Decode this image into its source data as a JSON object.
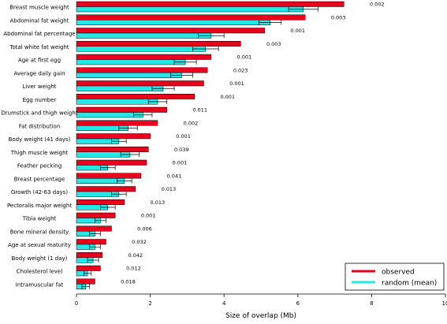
{
  "chart_data": {
    "type": "bar",
    "orientation": "horizontal",
    "xlabel": "Size of overlap (Mb)",
    "xlim": [
      0,
      10
    ],
    "xticks": [
      0,
      2,
      4,
      6,
      8,
      10
    ],
    "grid": false,
    "legend_position": "bottom-right",
    "categories": [
      "Breast muscle weight",
      "Abdominal fat weight",
      "Abdominal fat percentage",
      "Total white fat weight",
      "Age at first egg",
      "Average daily gain",
      "Liver weight",
      "Egg number",
      "Drumstick and thigh weight",
      "Fat distribution",
      "Body weight (41 days)",
      "Thigh muscle weight",
      "Feather pecking",
      "Breast percentage",
      "Growth (42-63 days)",
      "Pectoralis major weight",
      "Tibia weight",
      "Bone mineral density",
      "Age at sexual maturity",
      "Body weight (1 day)",
      "Cholesterol level",
      "Intramuscular fat"
    ],
    "series": [
      {
        "name": "observed",
        "color": "#e8001c",
        "values": [
          7.25,
          6.2,
          5.1,
          4.45,
          3.65,
          3.55,
          3.45,
          3.2,
          2.45,
          2.2,
          2.0,
          1.95,
          1.9,
          1.75,
          1.6,
          1.3,
          1.05,
          0.95,
          0.8,
          0.7,
          0.65,
          0.5
        ]
      },
      {
        "name": "random (mean)",
        "color": "#22e8e8",
        "values": [
          6.15,
          5.25,
          3.65,
          3.5,
          2.95,
          2.85,
          2.35,
          2.2,
          1.8,
          1.4,
          1.15,
          1.45,
          0.85,
          1.3,
          1.15,
          0.85,
          0.65,
          0.5,
          0.5,
          0.45,
          0.3,
          0.25
        ],
        "errors": [
          0.4,
          0.3,
          0.35,
          0.35,
          0.3,
          0.3,
          0.3,
          0.25,
          0.25,
          0.25,
          0.2,
          0.25,
          0.2,
          0.2,
          0.2,
          0.2,
          0.15,
          0.15,
          0.15,
          0.15,
          0.1,
          0.1
        ]
      }
    ],
    "pvalues": [
      "0.002",
      "0.003",
      "0.001",
      "0.003",
      "0.001",
      "0.023",
      "0.001",
      "0.001",
      "0.011",
      "0.002",
      "0.001",
      "0.039",
      "0.001",
      "0.041",
      "0.013",
      "0.013",
      "0.001",
      "0.006",
      "0.032",
      "0.042",
      "0.012",
      "0.018"
    ]
  }
}
